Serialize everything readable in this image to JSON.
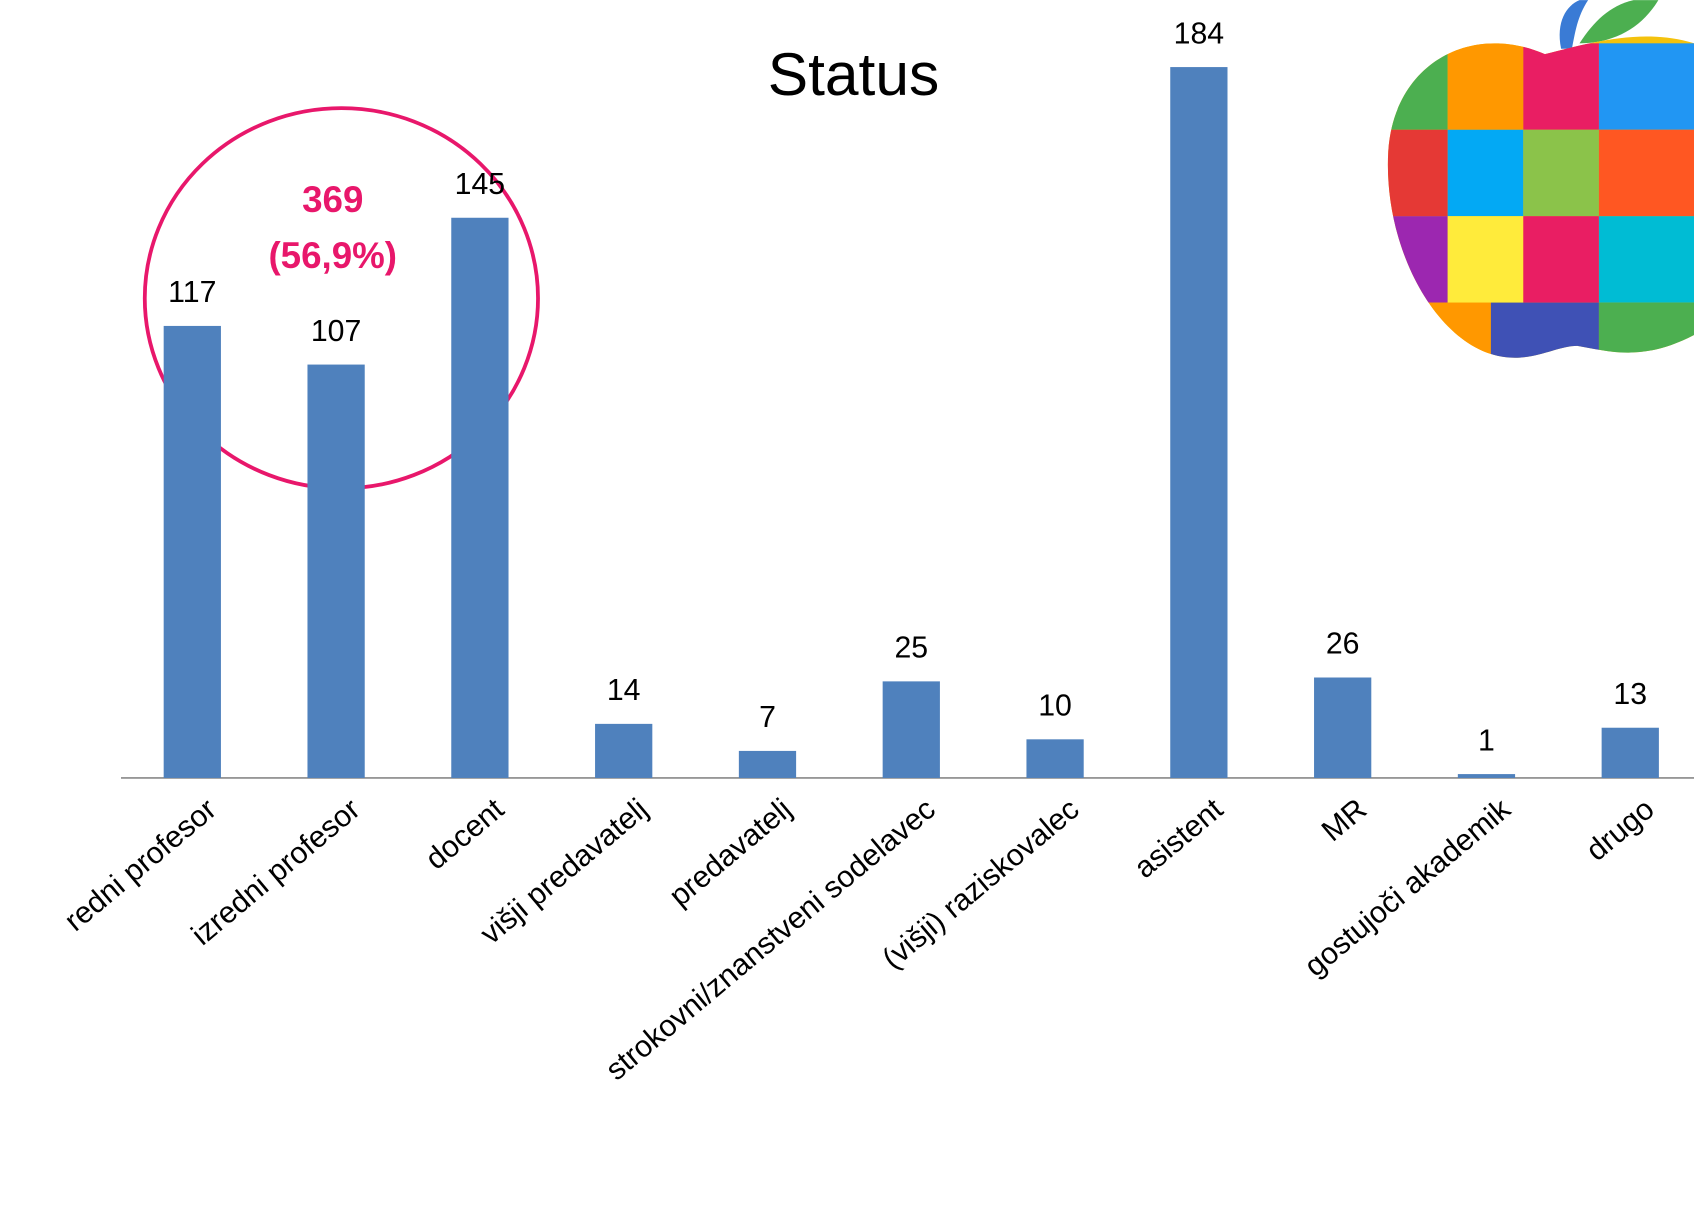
{
  "chart_data": {
    "type": "bar",
    "title": "Status",
    "categories": [
      "redni profesor",
      "izredni profesor",
      "docent",
      "višji predavatelj",
      "predavatelj",
      "strokovni/znanstveni sodelavec",
      "(višji) raziskovalec",
      "asistent",
      "MR",
      "gostujoči akademik",
      "drugo"
    ],
    "values": [
      117,
      107,
      145,
      14,
      7,
      25,
      10,
      184,
      26,
      1,
      13
    ],
    "color": "#4f81bd",
    "annotation": [
      "369",
      "(56,9%)"
    ],
    "annotation_color": "#e8176b"
  }
}
